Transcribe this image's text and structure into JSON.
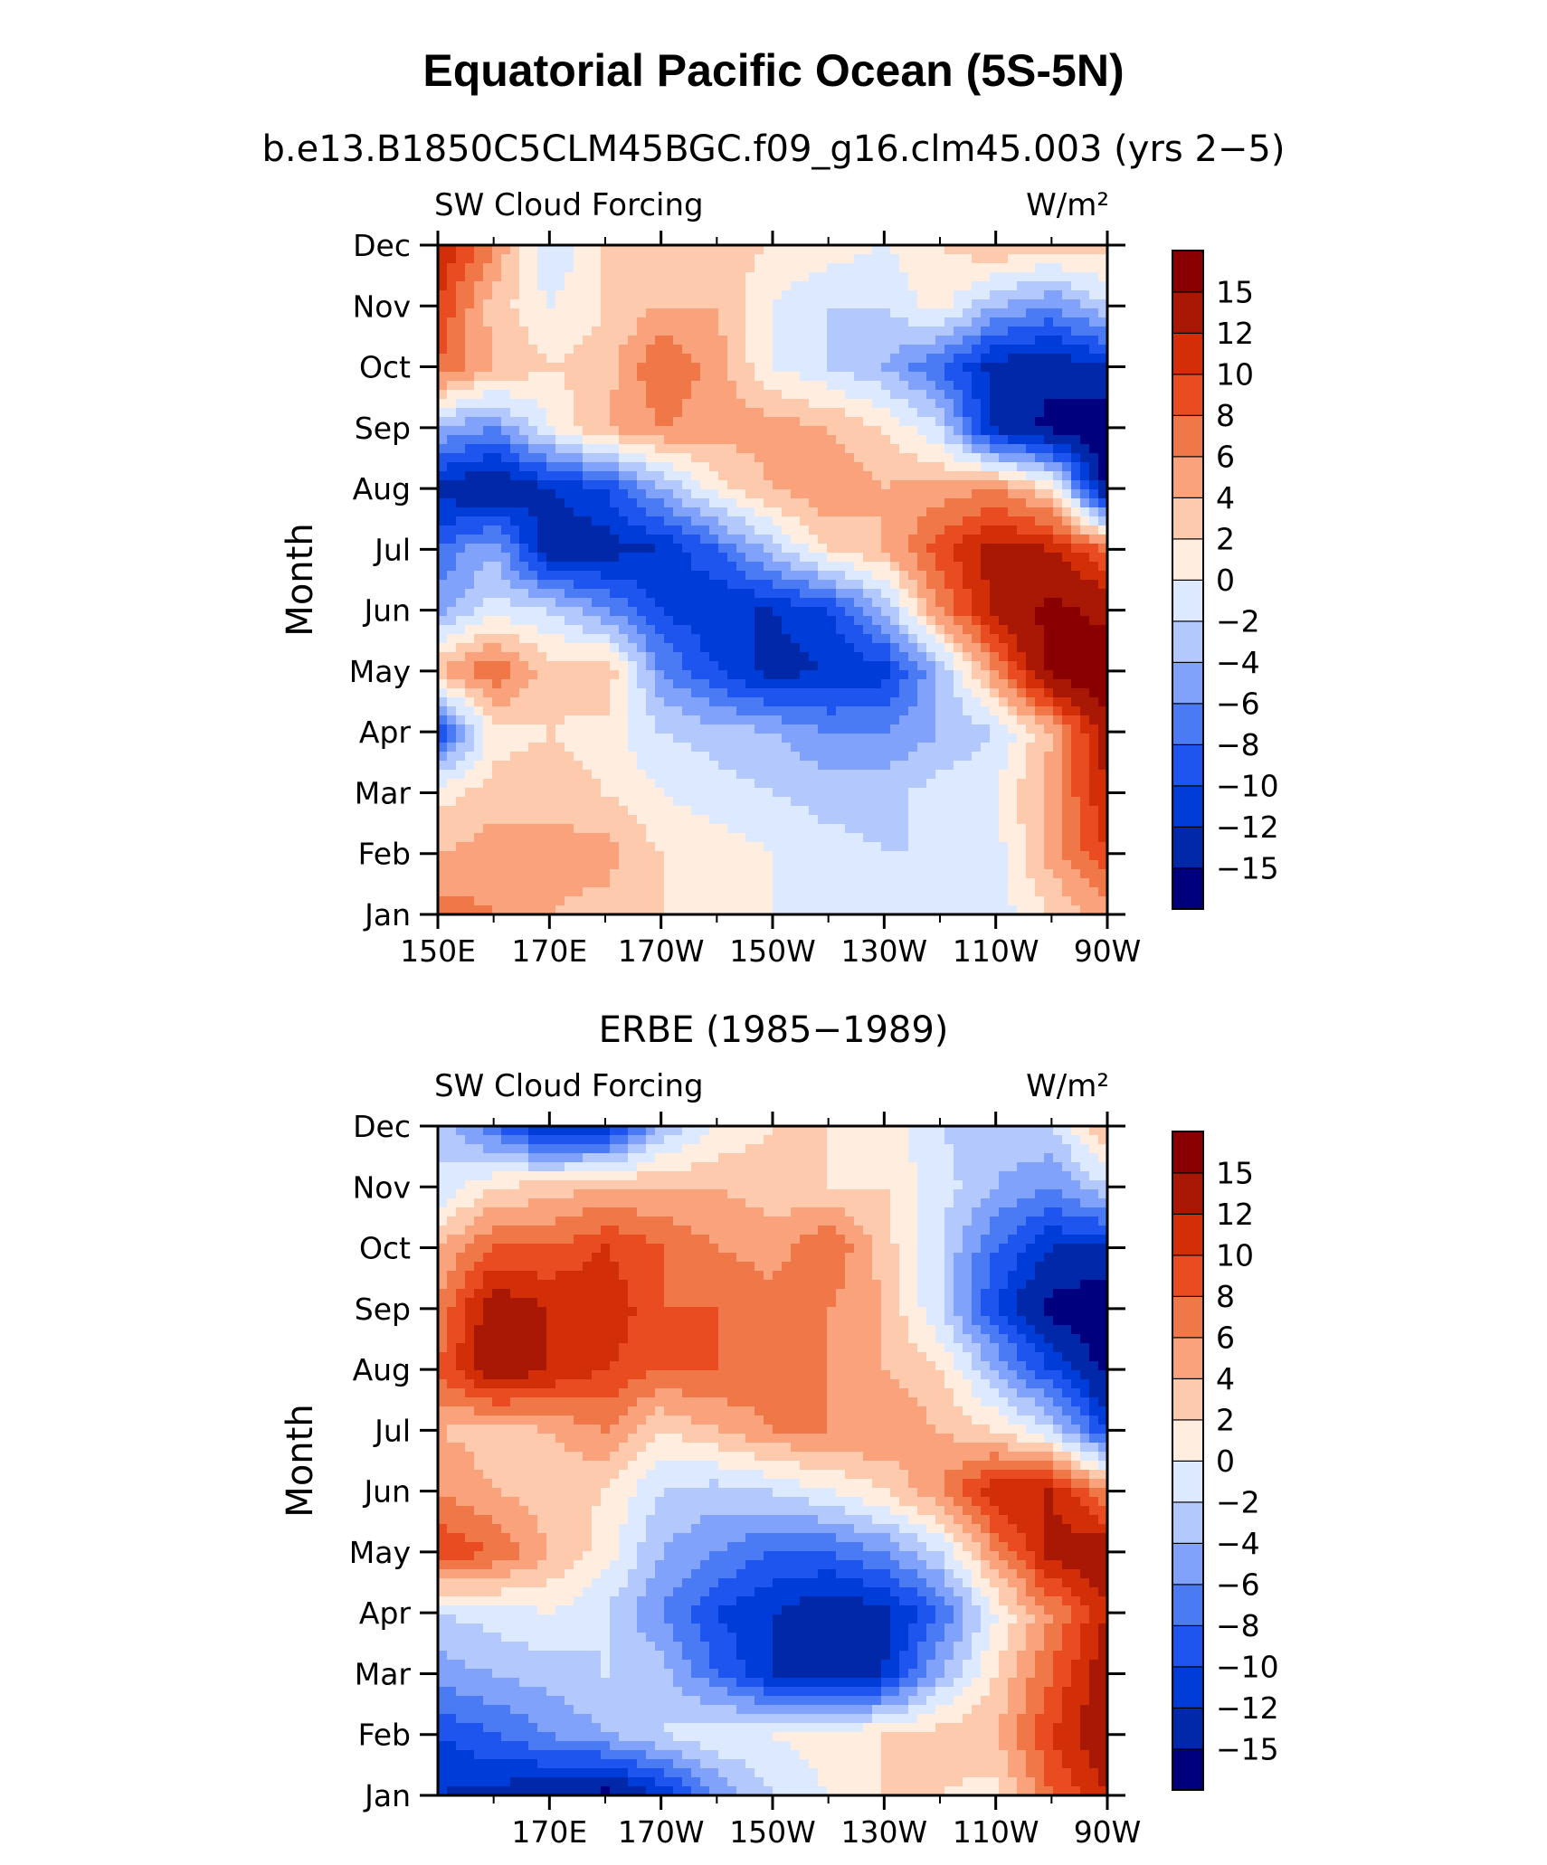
{
  "title": "Equatorial Pacific Ocean (5S-5N)",
  "colors": [
    "#00007f",
    "#0028a8",
    "#003cd8",
    "#1e55ef",
    "#4b7af5",
    "#80a2fa",
    "#b3c9fd",
    "#dce9ff",
    "#ffeee0",
    "#fdcaae",
    "#f9a27b",
    "#f07748",
    "#e84c20",
    "#d22e08",
    "#a81805",
    "#8a0000"
  ],
  "colorbar_labels": [
    "15",
    "12",
    "10",
    "8",
    "6",
    "4",
    "2",
    "0",
    "−2",
    "−4",
    "−6",
    "−8",
    "−10",
    "−12",
    "−15"
  ],
  "chart_data": [
    {
      "type": "heatmap",
      "subtitle": "b.e13.B1850C5CLM45BGC.f09_g16.clm45.003 (yrs 2−5)",
      "left_label": "SW Cloud Forcing",
      "right_label": "W/m²",
      "ylabel": "Month",
      "xticks": [
        "150E",
        "170E",
        "170W",
        "150W",
        "130W",
        "110W",
        "90W"
      ],
      "xtick_lons": [
        150,
        170,
        190,
        210,
        230,
        250,
        270
      ],
      "yticks": [
        "Jan",
        "Feb",
        "Mar",
        "Apr",
        "May",
        "Jun",
        "Jul",
        "Aug",
        "Sep",
        "Oct",
        "Nov",
        "Dec"
      ],
      "xlim": [
        150,
        270
      ],
      "levels": [
        -15,
        -12,
        -10,
        -8,
        -6,
        -4,
        -2,
        0,
        2,
        4,
        6,
        8,
        10,
        12,
        15
      ],
      "lons": [
        150,
        160,
        170,
        180,
        190,
        200,
        210,
        220,
        230,
        240,
        250,
        260,
        270
      ],
      "z": [
        [
          7,
          6,
          4,
          3,
          2,
          1,
          0,
          0,
          -1,
          -2,
          -1,
          2,
          5
        ],
        [
          4,
          5,
          5,
          5,
          2,
          1,
          0,
          -1,
          -2,
          -2,
          -1,
          5,
          10
        ],
        [
          1,
          3,
          3,
          2,
          0,
          -1,
          -2,
          -3,
          -3,
          -1,
          0,
          5,
          12
        ],
        [
          -10,
          1,
          2,
          1,
          -2,
          -3,
          -4,
          -6,
          -6,
          -4,
          -2,
          4,
          14
        ],
        [
          4,
          8,
          3,
          4,
          -6,
          -10,
          -13,
          -12,
          -11,
          -4,
          6,
          16,
          18
        ],
        [
          -5,
          -1,
          -2,
          -6,
          -10,
          -12,
          -12,
          -10,
          -4,
          6,
          13,
          16,
          14
        ],
        [
          -8,
          -4,
          -14,
          -13,
          -12,
          -8,
          -3,
          2,
          4,
          9,
          13,
          12,
          8
        ],
        [
          -13,
          -15,
          -12,
          -10,
          -4,
          1,
          4,
          6,
          4,
          5,
          6,
          2,
          -16
        ],
        [
          -4,
          -6,
          0,
          4,
          6,
          5,
          5,
          4,
          2,
          -2,
          -13,
          -16,
          -18
        ],
        [
          8,
          4,
          2,
          3,
          8,
          5,
          0,
          -2,
          -4,
          -8,
          -13,
          -14,
          -12
        ],
        [
          10,
          3,
          0,
          2,
          4,
          4,
          0,
          -2,
          -2,
          1,
          -4,
          -6,
          -2
        ],
        [
          12,
          6,
          -2,
          2,
          4,
          3,
          2,
          1,
          0,
          2,
          4,
          3,
          3
        ]
      ]
    },
    {
      "type": "heatmap",
      "subtitle": "ERBE (1985−1989)",
      "left_label": "SW Cloud Forcing",
      "right_label": "W/m²",
      "ylabel": "Month",
      "xticks": [
        "170E",
        "170W",
        "150W",
        "130W",
        "110W",
        "90W"
      ],
      "xtick_lons": [
        170,
        190,
        210,
        230,
        250,
        270
      ],
      "yticks": [
        "Jan",
        "Feb",
        "Mar",
        "Apr",
        "May",
        "Jun",
        "Jul",
        "Aug",
        "Sep",
        "Oct",
        "Nov",
        "Dec"
      ],
      "xlim": [
        150,
        270
      ],
      "levels": [
        -15,
        -12,
        -10,
        -8,
        -6,
        -4,
        -2,
        0,
        2,
        4,
        6,
        8,
        10,
        12,
        15
      ],
      "lons": [
        150,
        160,
        170,
        180,
        190,
        200,
        210,
        220,
        230,
        240,
        250,
        260,
        270
      ],
      "z": [
        [
          -12,
          -13,
          -14,
          -16,
          -12,
          -6,
          -2,
          0,
          2,
          2,
          1,
          8,
          12
        ],
        [
          -10,
          -8,
          -6,
          -4,
          -2,
          0,
          0,
          1,
          2,
          3,
          4,
          10,
          14
        ],
        [
          -5,
          -4,
          -3,
          -2,
          -3,
          -8,
          -12,
          -14,
          -12,
          -4,
          2,
          8,
          14
        ],
        [
          -2,
          -1,
          0,
          -2,
          -6,
          -10,
          -12,
          -14,
          -13,
          -8,
          0,
          6,
          12
        ],
        [
          10,
          8,
          4,
          1,
          -4,
          -6,
          -8,
          -8,
          -6,
          -2,
          6,
          13,
          14
        ],
        [
          6,
          4,
          3,
          2,
          -2,
          -3,
          -2,
          0,
          2,
          6,
          12,
          12,
          6
        ],
        [
          4,
          3,
          4,
          6,
          2,
          4,
          6,
          6,
          6,
          4,
          2,
          -2,
          -10
        ],
        [
          8,
          14,
          12,
          10,
          8,
          8,
          7,
          6,
          4,
          2,
          -4,
          -10,
          -16
        ],
        [
          6,
          14,
          12,
          12,
          8,
          8,
          7,
          6,
          4,
          -2,
          -10,
          -16,
          -18
        ],
        [
          4,
          8,
          8,
          10,
          8,
          6,
          5,
          8,
          3,
          -2,
          -8,
          -12,
          -12
        ],
        [
          -2,
          2,
          3,
          4,
          4,
          4,
          3,
          2,
          2,
          -1,
          -4,
          -6,
          -2
        ],
        [
          -2,
          -8,
          -13,
          -12,
          -4,
          0,
          2,
          2,
          1,
          -2,
          -3,
          -2,
          4
        ]
      ]
    }
  ]
}
